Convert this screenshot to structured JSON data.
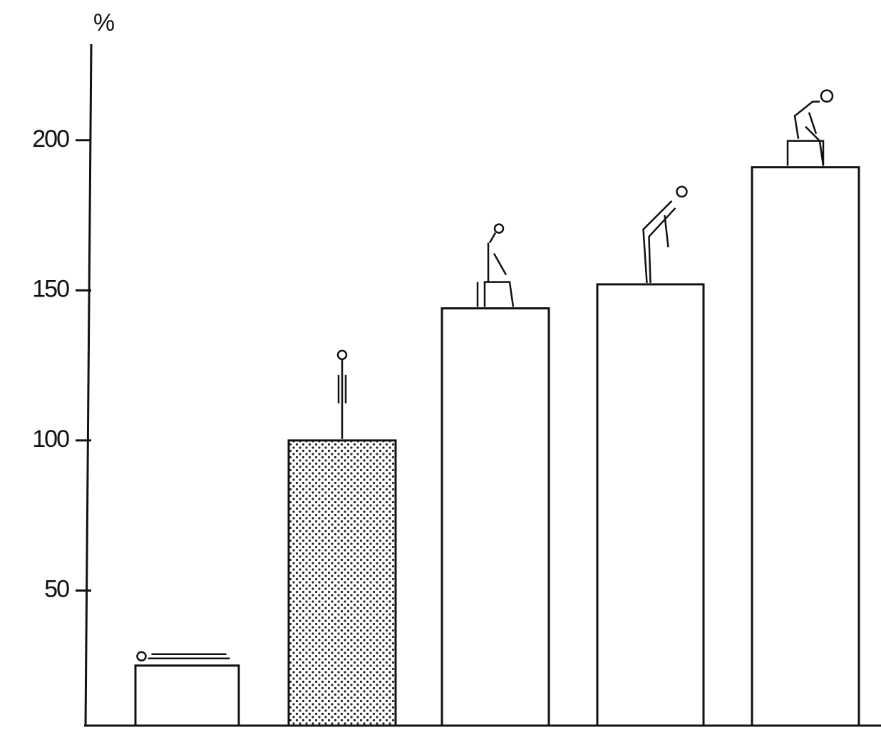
{
  "chart_data": {
    "type": "bar",
    "y_label": "%",
    "categories": [
      null,
      null,
      null,
      null,
      null
    ],
    "values": [
      25,
      100,
      144,
      152,
      191
    ],
    "bar_fills": [
      "#ffffff",
      "dots",
      "#ffffff",
      "#ffffff",
      "#ffffff"
    ],
    "ylim": [
      5,
      232
    ],
    "yticks": [
      50,
      100,
      150,
      200
    ],
    "grid": false
  }
}
